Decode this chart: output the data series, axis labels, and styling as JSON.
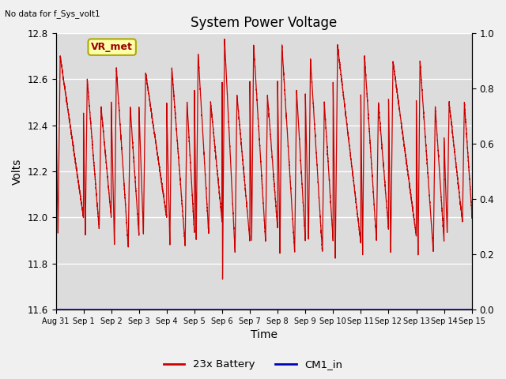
{
  "title": "System Power Voltage",
  "xlabel": "Time",
  "ylabel": "Volts",
  "top_left_text": "No data for f_Sys_volt1",
  "annotation_text": "VR_met",
  "ylim_left": [
    11.6,
    12.8
  ],
  "ylim_right": [
    0.0,
    1.0
  ],
  "yticks_left": [
    11.6,
    11.8,
    12.0,
    12.2,
    12.4,
    12.6,
    12.8
  ],
  "yticks_right": [
    0.0,
    0.2,
    0.4,
    0.6,
    0.8,
    1.0
  ],
  "xtick_labels": [
    "Aug 31",
    "Sep 1",
    "Sep 2",
    "Sep 3",
    "Sep 4",
    "Sep 5",
    "Sep 6",
    "Sep 7",
    "Sep 8",
    "Sep 9",
    "Sep 10",
    "Sep 11",
    "Sep 12",
    "Sep 13",
    "Sep 14",
    "Sep 15"
  ],
  "plot_bg": "#dcdcdc",
  "fig_bg": "#f0f0f0",
  "line_color_battery": "#cc0000",
  "line_color_cm1": "#0000bb",
  "legend_label_battery": "23x Battery",
  "legend_label_cm1": "CM1_in",
  "grid_color": "#ffffff",
  "annotation_facecolor": "#ffffaa",
  "annotation_edgecolor": "#aaaa00",
  "annotation_textcolor": "#990000"
}
